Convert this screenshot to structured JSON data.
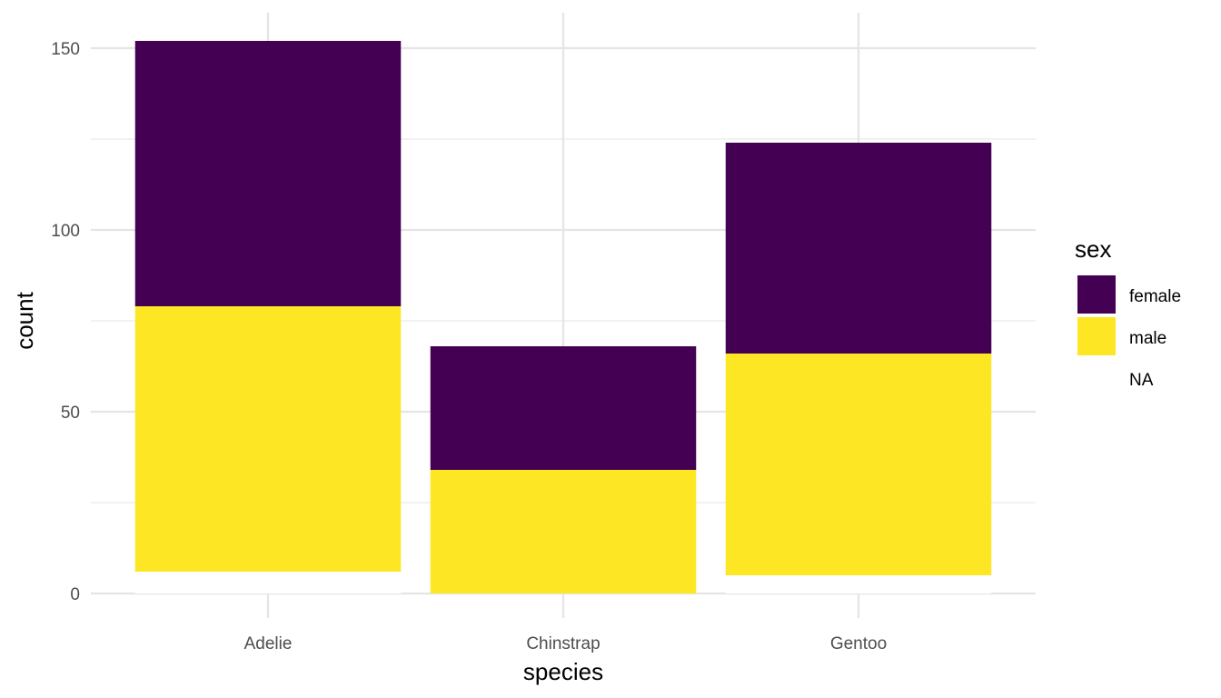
{
  "chart_data": {
    "type": "bar",
    "stacked": true,
    "categories": [
      "Adelie",
      "Chinstrap",
      "Gentoo"
    ],
    "series": [
      {
        "name": "NA",
        "values": [
          6,
          0,
          5
        ],
        "color": "#ffffff"
      },
      {
        "name": "male",
        "values": [
          73,
          34,
          61
        ],
        "color": "#fde725"
      },
      {
        "name": "female",
        "values": [
          73,
          34,
          58
        ],
        "color": "#440154"
      }
    ],
    "xlabel": "species",
    "ylabel": "count",
    "ylim": [
      0,
      160
    ],
    "yticks": [
      0,
      50,
      100,
      150
    ],
    "grid": true,
    "legend": {
      "title": "sex",
      "position": "right",
      "entries": [
        "female",
        "male",
        "NA"
      ]
    }
  }
}
